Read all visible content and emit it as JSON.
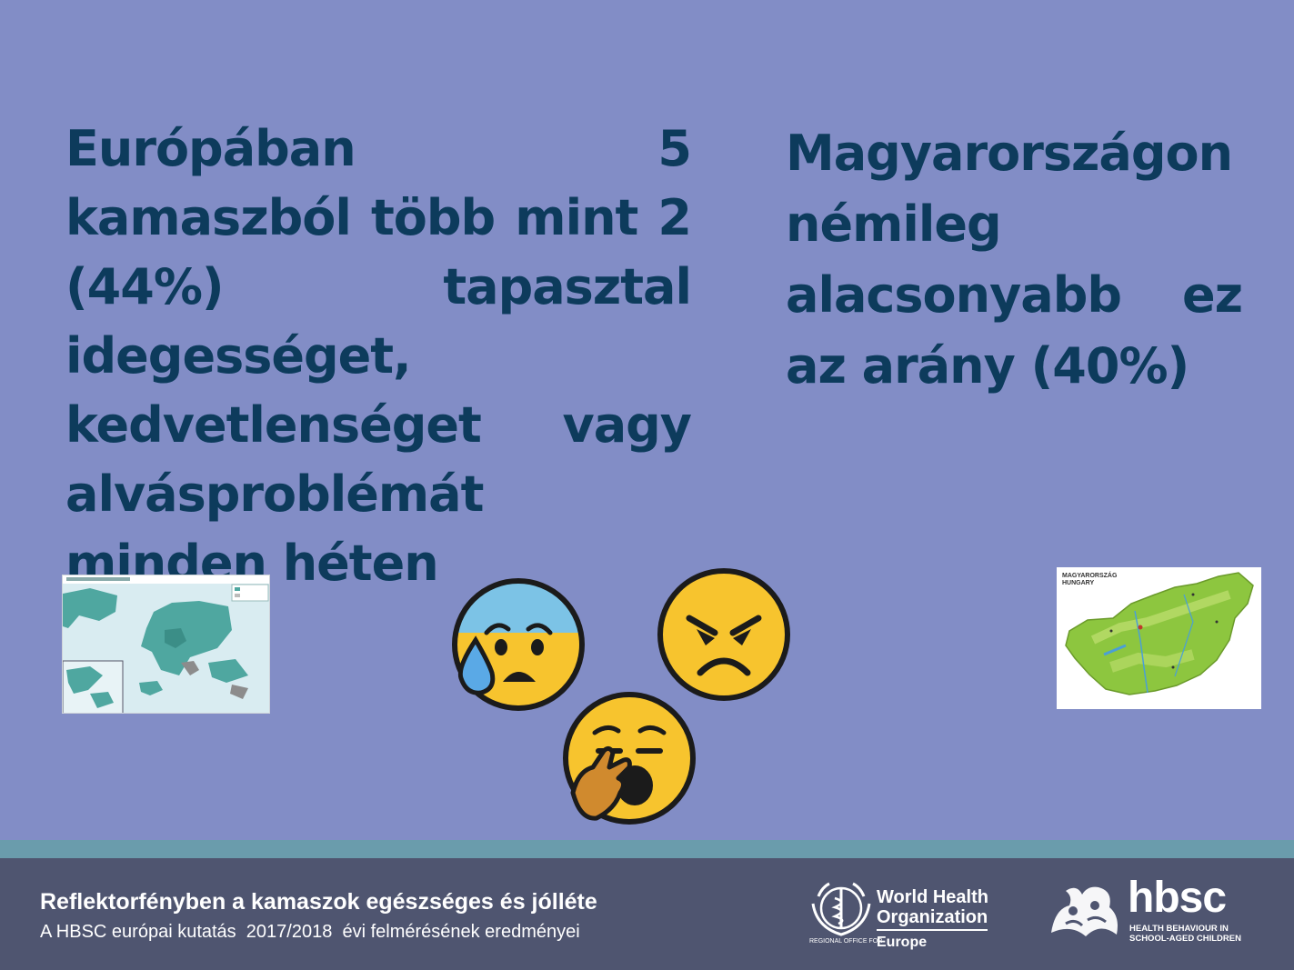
{
  "slide": {
    "left_text": "Európában 5 kamaszból több mint 2 (44%) tapasztal idegességet, kedvetlenséget vagy alvásproblémát minden héten",
    "right_text": "Magyarországon némileg alacsonyabb ez az arány (40%)"
  },
  "images": {
    "europe_map": "europe-map-icon",
    "hungary_map_caption_1": "MAGYARORSZÁG",
    "hungary_map_caption_2": "HUNGARY",
    "emojis": [
      "anxious-sweat-face-icon",
      "angry-face-icon",
      "yawning-face-icon"
    ]
  },
  "footer": {
    "title": "Reflektorfényben a kamaszok egészséges és jólléte",
    "subtitle": "A HBSC európai kutatás  2017/2018  évi felmérésének eredményei",
    "who": {
      "name_line1": "World Health",
      "name_line2": "Organization",
      "region": "REGIONAL OFFICE FOR",
      "europe": "Europe"
    },
    "hbsc": {
      "word": "hbsc",
      "tag_line1": "HEALTH BEHAVIOUR IN",
      "tag_line2": "SCHOOL-AGED CHILDREN"
    }
  },
  "colors": {
    "background": "#828dc6",
    "heading_text": "#0d3b5c",
    "footer_band": "#4f5570",
    "footer_stripe": "#6a9cac",
    "emoji_yellow": "#f7c42e"
  }
}
